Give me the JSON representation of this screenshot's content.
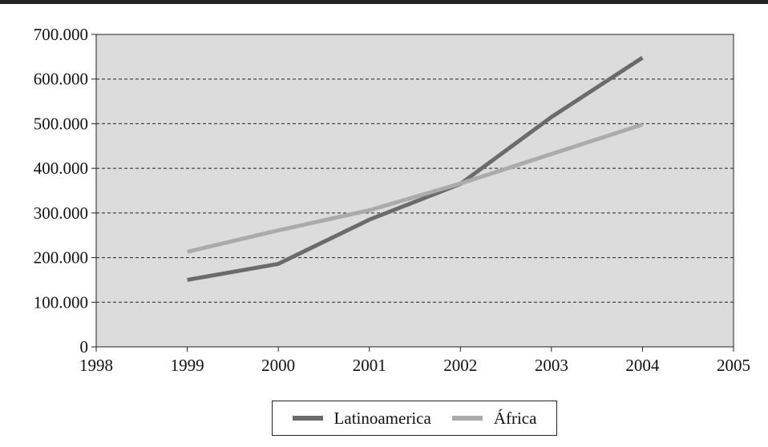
{
  "chart_data": {
    "type": "line",
    "title": "",
    "xlabel": "",
    "ylabel": "",
    "x": [
      1999,
      2000,
      2001,
      2002,
      2003,
      2004
    ],
    "xlim": [
      1998,
      2005
    ],
    "ylim": [
      0,
      700000
    ],
    "x_ticks": [
      "1998",
      "1999",
      "2000",
      "2001",
      "2002",
      "2003",
      "2004",
      "2005"
    ],
    "y_ticks": [
      "0",
      "100.000",
      "200.000",
      "300.000",
      "400.000",
      "500.000",
      "600.000",
      "700.000"
    ],
    "grid": "horizontal dashed",
    "legend_position": "bottom",
    "plot_background": "#dcdcdc",
    "series": [
      {
        "name": "Latinoamerica",
        "color": "#6b6b6b",
        "values": [
          150000,
          186000,
          285000,
          365000,
          515000,
          648000
        ]
      },
      {
        "name": "África",
        "color": "#ababab",
        "values": [
          213000,
          261000,
          306000,
          366000,
          432000,
          498000
        ]
      }
    ]
  }
}
